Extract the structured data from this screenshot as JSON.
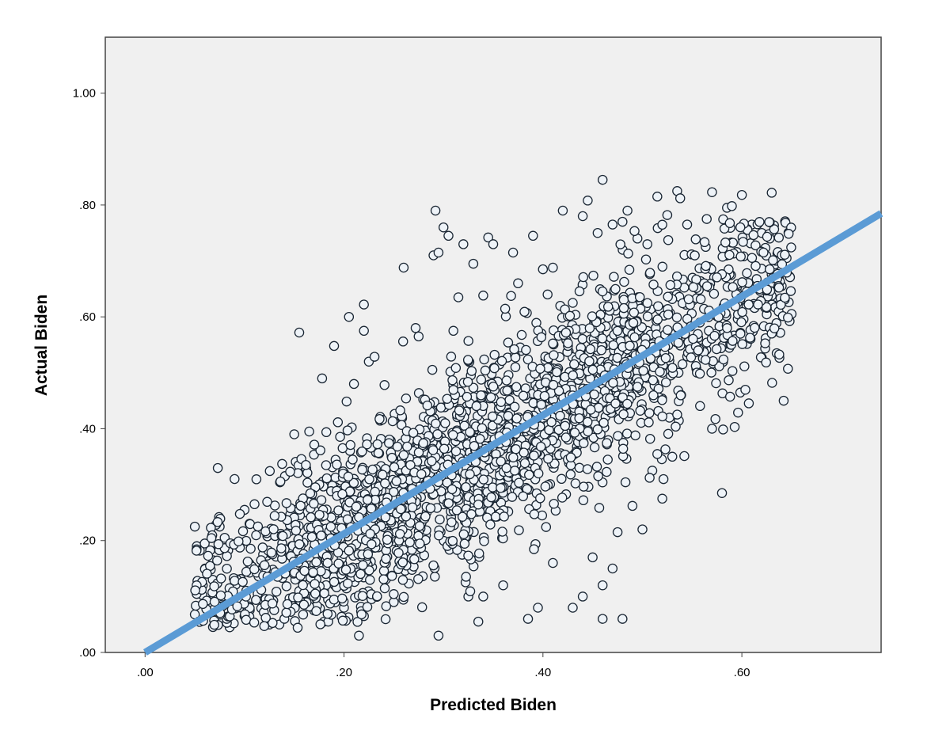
{
  "chart_data": {
    "type": "scatter",
    "xlabel": "Predicted Biden",
    "ylabel": "Actual Biden",
    "xlim": [
      -0.04,
      0.74
    ],
    "ylim": [
      0.0,
      1.1
    ],
    "x_ticks": [
      {
        "value": 0.0,
        "label": ".00"
      },
      {
        "value": 0.2,
        "label": ".20"
      },
      {
        "value": 0.4,
        "label": ".40"
      },
      {
        "value": 0.6,
        "label": ".60"
      }
    ],
    "y_ticks": [
      {
        "value": 0.0,
        "label": ".00"
      },
      {
        "value": 0.2,
        "label": ".20"
      },
      {
        "value": 0.4,
        "label": ".40"
      },
      {
        "value": 0.6,
        "label": ".60"
      },
      {
        "value": 0.8,
        "label": ".80"
      },
      {
        "value": 1.0,
        "label": "1.00"
      }
    ],
    "grid": false,
    "fit_line": {
      "x": [
        0.0,
        0.74
      ],
      "y": [
        0.0,
        0.785
      ],
      "color": "#5b9bd5"
    },
    "marker": {
      "fill": "#eef3f8",
      "stroke": "#1a2633"
    },
    "plot_background": "#f0f0f0",
    "points": [
      [
        0.05,
        0.225
      ],
      [
        0.052,
        0.19
      ],
      [
        0.055,
        0.182
      ],
      [
        0.05,
        0.068
      ],
      [
        0.06,
        0.085
      ],
      [
        0.058,
        0.12
      ],
      [
        0.068,
        0.13
      ],
      [
        0.075,
        0.225
      ],
      [
        0.08,
        0.205
      ],
      [
        0.085,
        0.105
      ],
      [
        0.09,
        0.31
      ],
      [
        0.092,
        0.195
      ],
      [
        0.1,
        0.255
      ],
      [
        0.105,
        0.23
      ],
      [
        0.11,
        0.265
      ],
      [
        0.1,
        0.065
      ],
      [
        0.12,
        0.09
      ],
      [
        0.125,
        0.05
      ],
      [
        0.135,
        0.05
      ],
      [
        0.155,
        0.572
      ],
      [
        0.15,
        0.39
      ],
      [
        0.165,
        0.395
      ],
      [
        0.178,
        0.49
      ],
      [
        0.19,
        0.548
      ],
      [
        0.205,
        0.6
      ],
      [
        0.21,
        0.48
      ],
      [
        0.215,
        0.03
      ],
      [
        0.22,
        0.622
      ],
      [
        0.22,
        0.575
      ],
      [
        0.225,
        0.52
      ],
      [
        0.26,
        0.688
      ],
      [
        0.272,
        0.58
      ],
      [
        0.275,
        0.565
      ],
      [
        0.29,
        0.71
      ],
      [
        0.292,
        0.79
      ],
      [
        0.295,
        0.715
      ],
      [
        0.3,
        0.76
      ],
      [
        0.305,
        0.745
      ],
      [
        0.31,
        0.575
      ],
      [
        0.315,
        0.635
      ],
      [
        0.32,
        0.73
      ],
      [
        0.33,
        0.695
      ],
      [
        0.34,
        0.638
      ],
      [
        0.345,
        0.742
      ],
      [
        0.35,
        0.73
      ],
      [
        0.37,
        0.715
      ],
      [
        0.375,
        0.66
      ],
      [
        0.39,
        0.745
      ],
      [
        0.4,
        0.685
      ],
      [
        0.41,
        0.688
      ],
      [
        0.42,
        0.79
      ],
      [
        0.43,
        0.625
      ],
      [
        0.44,
        0.78
      ],
      [
        0.445,
        0.808
      ],
      [
        0.455,
        0.75
      ],
      [
        0.46,
        0.845
      ],
      [
        0.47,
        0.765
      ],
      [
        0.48,
        0.77
      ],
      [
        0.485,
        0.79
      ],
      [
        0.495,
        0.74
      ],
      [
        0.505,
        0.73
      ],
      [
        0.515,
        0.815
      ],
      [
        0.525,
        0.782
      ],
      [
        0.535,
        0.825
      ],
      [
        0.538,
        0.812
      ],
      [
        0.545,
        0.765
      ],
      [
        0.57,
        0.823
      ],
      [
        0.585,
        0.795
      ],
      [
        0.59,
        0.798
      ],
      [
        0.6,
        0.818
      ],
      [
        0.61,
        0.765
      ],
      [
        0.62,
        0.75
      ],
      [
        0.63,
        0.822
      ],
      [
        0.64,
        0.685
      ],
      [
        0.645,
        0.705
      ],
      [
        0.648,
        0.672
      ],
      [
        0.64,
        0.655
      ],
      [
        0.635,
        0.535
      ],
      [
        0.642,
        0.45
      ],
      [
        0.58,
        0.285
      ],
      [
        0.57,
        0.4
      ],
      [
        0.52,
        0.275
      ],
      [
        0.53,
        0.35
      ],
      [
        0.51,
        0.325
      ],
      [
        0.49,
        0.262
      ],
      [
        0.48,
        0.06
      ],
      [
        0.46,
        0.06
      ],
      [
        0.44,
        0.1
      ],
      [
        0.43,
        0.08
      ],
      [
        0.41,
        0.16
      ],
      [
        0.395,
        0.08
      ],
      [
        0.385,
        0.06
      ],
      [
        0.335,
        0.055
      ],
      [
        0.295,
        0.03
      ],
      [
        0.325,
        0.1
      ],
      [
        0.34,
        0.1
      ],
      [
        0.36,
        0.12
      ],
      [
        0.22,
        0.065
      ],
      [
        0.25,
        0.09
      ],
      [
        0.17,
        0.075
      ],
      [
        0.2,
        0.08
      ],
      [
        0.14,
        0.06
      ],
      [
        0.18,
        0.055
      ],
      [
        0.46,
        0.12
      ],
      [
        0.45,
        0.17
      ],
      [
        0.47,
        0.15
      ],
      [
        0.475,
        0.215
      ],
      [
        0.5,
        0.22
      ]
    ]
  }
}
